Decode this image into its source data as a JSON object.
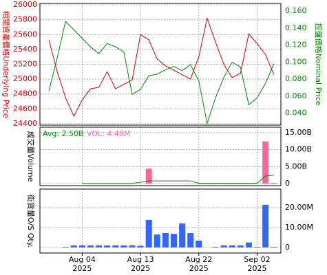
{
  "chart_data": [
    {
      "type": "line",
      "ylabel": "相關資產價格Underlying Price",
      "y2label": "控盤價格Nominal Price",
      "ylim": [
        24380,
        26020
      ],
      "yticks": [
        24400,
        24600,
        24800,
        25000,
        25200,
        25400,
        25600,
        25800,
        26000
      ],
      "y2lim": [
        0.026,
        0.169
      ],
      "y2ticks": [
        {
          "value": 0.04,
          "label": "0.040"
        },
        {
          "value": 0.06,
          "label": "0.060"
        },
        {
          "value": 0.08,
          "label": "0.080"
        },
        {
          "value": 0.1,
          "label": "0.100"
        },
        {
          "value": 0.12,
          "label": "0.120"
        },
        {
          "value": 0.14,
          "label": "0.140"
        },
        {
          "value": 0.16,
          "label": "0.160"
        }
      ],
      "grid": true,
      "series": [
        {
          "color": "#cc0000",
          "axis": "y",
          "values": [
            25530,
            25100,
            24750,
            24500,
            24720,
            24870,
            24890,
            25100,
            24870,
            24930,
            24990,
            25600,
            25530,
            25270,
            25180,
            25120,
            25060,
            25000,
            25300,
            25820,
            25500,
            25200,
            25020,
            25080,
            25610,
            25480,
            25330,
            25060
          ]
        },
        {
          "color": "#008800",
          "axis": "y2",
          "values": [
            0.066,
            0.105,
            0.148,
            0.138,
            0.128,
            0.118,
            0.11,
            0.122,
            0.118,
            0.112,
            0.062,
            0.068,
            0.084,
            0.086,
            0.091,
            0.095,
            0.09,
            0.097,
            0.078,
            0.028,
            0.058,
            0.082,
            0.1,
            0.094,
            0.05,
            0.058,
            0.075,
            0.098
          ]
        }
      ]
    },
    {
      "type": "bar",
      "ylabel": "成交量Volume",
      "ylim": [
        -0.6,
        16.6
      ],
      "yticks": [
        0,
        {
          "value": 5,
          "label": "5.00B"
        },
        {
          "value": 10,
          "label": "10.00B"
        },
        {
          "value": 15,
          "label": "15.00B"
        }
      ],
      "grid": true,
      "annotations": [
        {
          "text": "Avg: 2.50B",
          "color": "#008800"
        },
        {
          "text": "VOL: 4.48M",
          "color": "#ff66aa"
        }
      ],
      "series": [
        {
          "type": "bar",
          "color": "#ff6699",
          "values": [
            null,
            null,
            null,
            null,
            null,
            null,
            null,
            null,
            null,
            null,
            null,
            null,
            4.4,
            null,
            null,
            null,
            null,
            null,
            null,
            null,
            null,
            null,
            null,
            null,
            null,
            null,
            12.4,
            0.2
          ]
        },
        {
          "type": "line",
          "color": "#008800",
          "values": [
            null,
            null,
            null,
            null,
            0.05,
            0.05,
            0.05,
            0.05,
            0.05,
            0.05,
            0.05,
            0.4,
            0.8,
            0.8,
            0.8,
            0.8,
            0.8,
            0.8,
            0.1,
            0.1,
            0.1,
            0.1,
            0.1,
            0.1,
            0.1,
            0.1,
            2.2,
            2.5
          ]
        }
      ]
    },
    {
      "type": "bar",
      "ylabel": "街貨量O/S Qty.",
      "ylim": [
        -2.8,
        29.3
      ],
      "yticks": [
        0,
        {
          "value": 10,
          "label": "10.00M"
        },
        {
          "value": 20,
          "label": "20.00M"
        }
      ],
      "grid": true,
      "categories": [
        null,
        null,
        null,
        null,
        [
          "Aug 04",
          "2025"
        ],
        null,
        null,
        null,
        null,
        null,
        null,
        [
          "Aug 13",
          "2025"
        ],
        null,
        null,
        null,
        null,
        null,
        null,
        [
          "Aug 22",
          "2025"
        ],
        null,
        null,
        null,
        null,
        null,
        null,
        [
          "Sep 02",
          "2025"
        ],
        null,
        null
      ],
      "series": [
        {
          "type": "bar",
          "color": "#3366ff",
          "values": [
            null,
            null,
            0.3,
            1.0,
            1.0,
            1.0,
            1.0,
            1.0,
            1.0,
            1.0,
            1.0,
            0.8,
            13.8,
            6.5,
            7.2,
            6.8,
            12.0,
            7.2,
            3.4,
            null,
            0.3,
            1.0,
            1.0,
            1.0,
            2.5,
            0.3,
            21.4,
            0.3
          ]
        }
      ]
    }
  ]
}
